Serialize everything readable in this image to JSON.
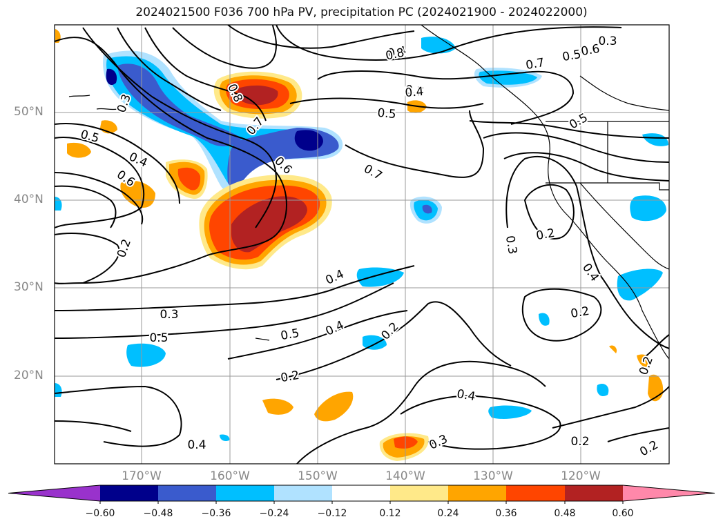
{
  "title": "2024021500 F036 700 hPa PV, precipitation PC (2024021900 - 2024022000)",
  "longitude_labels": [
    "170°W",
    "160°W",
    "150°W",
    "140°W",
    "130°W",
    "120°W"
  ],
  "latitude_labels": [
    "50°N",
    "40°N",
    "30°N",
    "20°N"
  ],
  "contour_labels": [
    "0.3",
    "0.5",
    "0.4",
    "0.3",
    "0.5",
    "0.4",
    "0.6",
    "0.8",
    "0.7",
    "0.8",
    "0.7",
    "0.5",
    "0.4",
    "0.6",
    "0.6",
    "0.7",
    "0.7",
    "0.5",
    "0.2",
    "0.3",
    "0.2",
    "0.4",
    "0.4",
    "0.3",
    "0.5",
    "0.5",
    "0.4",
    "0.2",
    "0.2",
    "0.2",
    "0.4",
    "0.4",
    "0.3",
    "0.2",
    "0.2",
    "0.2"
  ],
  "colorbar": {
    "ticks": [
      "−0.60",
      "−0.48",
      "−0.36",
      "−0.24",
      "−0.12",
      "0.12",
      "0.24",
      "0.36",
      "0.48",
      "0.60"
    ],
    "colors": [
      "#9932cc",
      "#00008b",
      "#3a5bcd",
      "#00bfff",
      "#b0e2ff",
      "#ffffff",
      "#ffe989",
      "#ffa500",
      "#ff4500",
      "#b22222",
      "#ff88aa"
    ]
  },
  "colors": {
    "dark_blue": "#00008b",
    "royal_blue": "#3a5bcd",
    "sky_blue": "#00bfff",
    "light_blue": "#b0e2ff",
    "light_yellow": "#ffe989",
    "orange": "#ffa500",
    "orange_red": "#ff4500",
    "firebrick": "#b22222"
  }
}
